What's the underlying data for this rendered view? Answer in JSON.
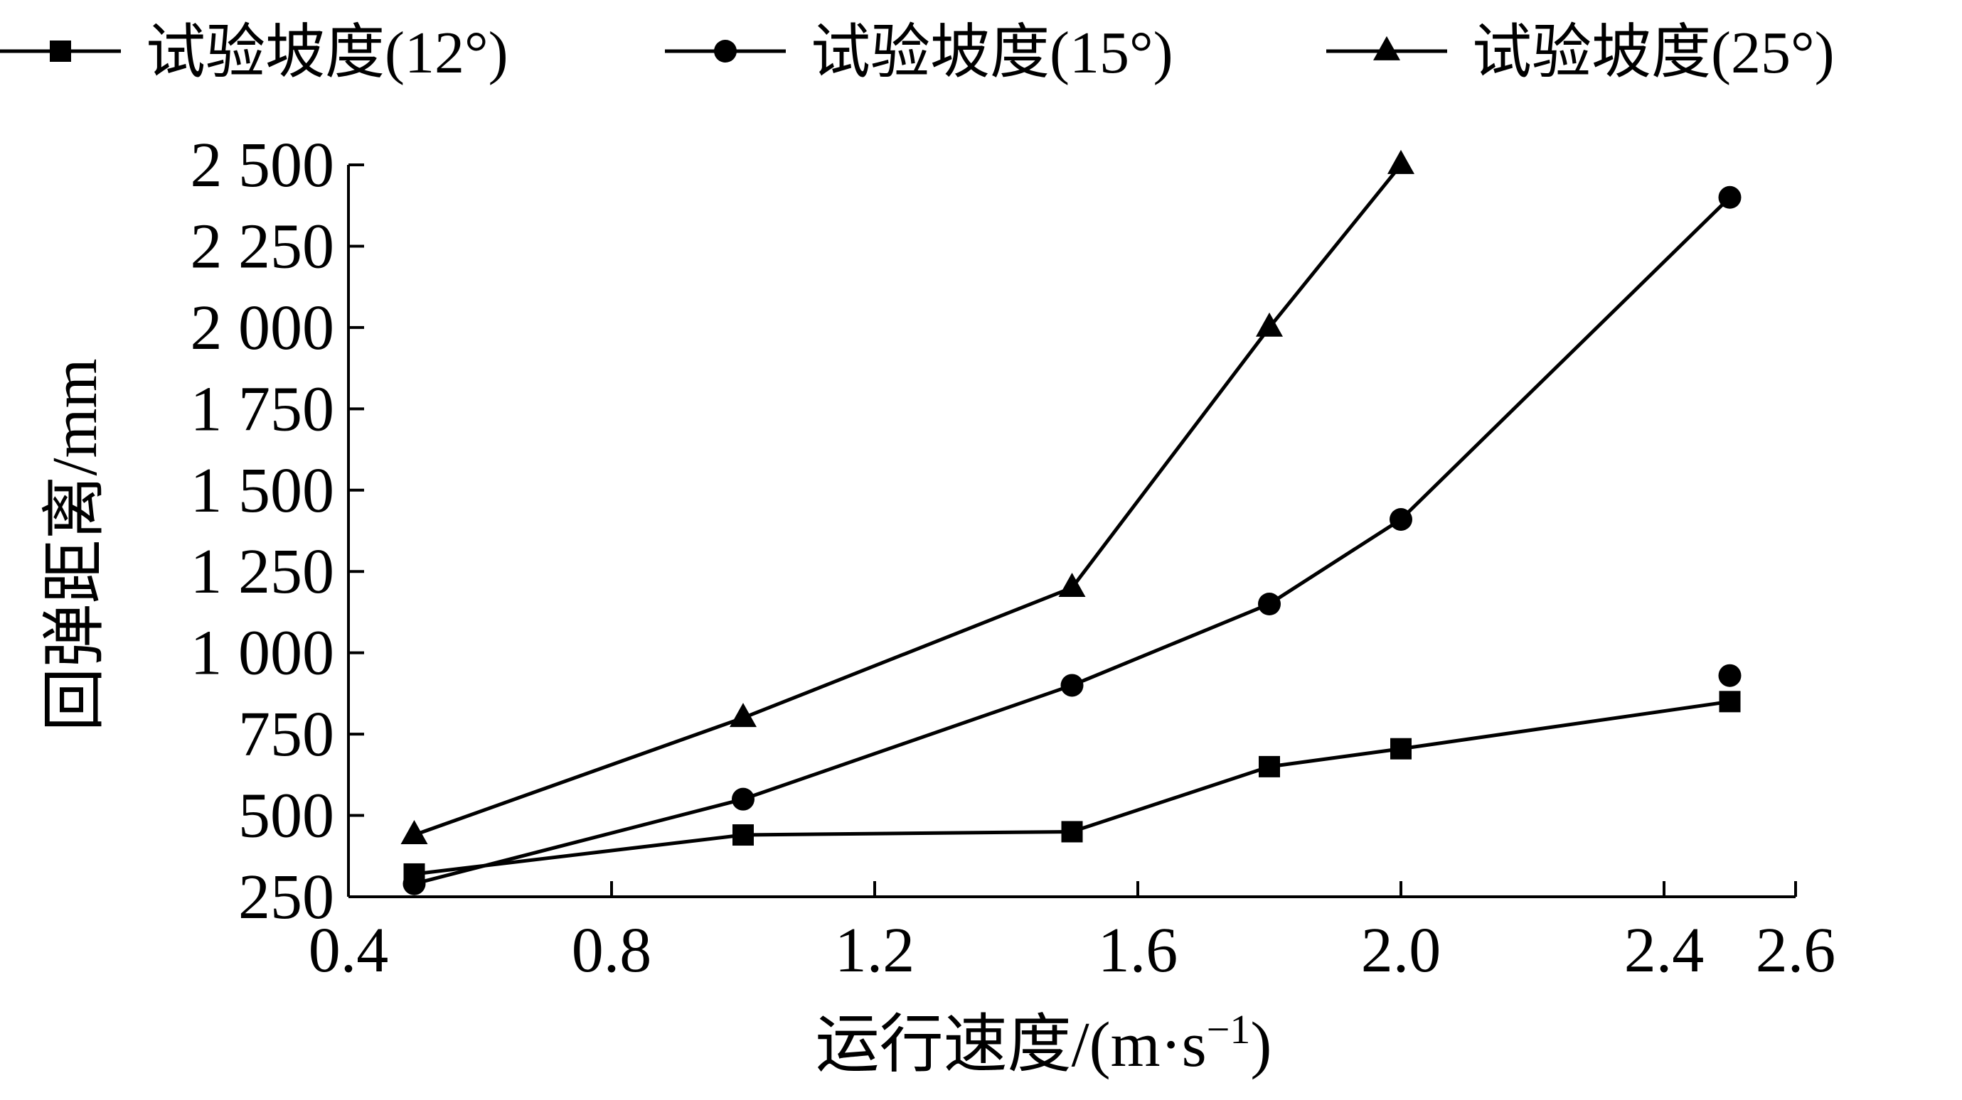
{
  "chart_data": {
    "type": "line",
    "title": "",
    "xlabel_parts": {
      "main": "运行速度/(m·s",
      "sup": "−1",
      "tail": ")"
    },
    "ylabel": "回弹距离/mm",
    "xlim": [
      0.4,
      2.6
    ],
    "ylim": [
      250,
      2500
    ],
    "xticks": [
      {
        "value": 0.4,
        "label": "0.4"
      },
      {
        "value": 0.8,
        "label": "0.8"
      },
      {
        "value": 1.2,
        "label": "1.2"
      },
      {
        "value": 1.6,
        "label": "1.6"
      },
      {
        "value": 2.0,
        "label": "2.0"
      },
      {
        "value": 2.4,
        "label": "2.4"
      },
      {
        "value": 2.6,
        "label": "2.6"
      }
    ],
    "yticks": [
      {
        "value": 250,
        "label": "250"
      },
      {
        "value": 500,
        "label": "500"
      },
      {
        "value": 750,
        "label": "750"
      },
      {
        "value": 1000,
        "label": "1 000"
      },
      {
        "value": 1250,
        "label": "1 250"
      },
      {
        "value": 1500,
        "label": "1 500"
      },
      {
        "value": 1750,
        "label": "1 750"
      },
      {
        "value": 2000,
        "label": "2 000"
      },
      {
        "value": 2250,
        "label": "2 250"
      },
      {
        "value": 2500,
        "label": "2 500"
      }
    ],
    "legend_position": "top",
    "grid": false,
    "line_color": "#000000",
    "series": [
      {
        "name": "试验坡度(12°)",
        "marker": "square",
        "x": [
          0.5,
          1.0,
          1.5,
          1.8,
          2.0,
          2.5
        ],
        "y": [
          320,
          440,
          450,
          650,
          705,
          850
        ]
      },
      {
        "name": "试验坡度(15°)",
        "marker": "circle",
        "x": [
          0.5,
          1.0,
          1.5,
          1.8,
          2.0,
          2.5
        ],
        "y": [
          290,
          550,
          900,
          1150,
          1410,
          2400
        ],
        "extra_points": [
          {
            "x": 2.5,
            "y": 930
          }
        ]
      },
      {
        "name": "试验坡度(25°)",
        "marker": "triangle",
        "x": [
          0.5,
          1.0,
          1.5,
          1.8,
          2.0
        ],
        "y": [
          440,
          800,
          1200,
          2000,
          2500
        ]
      }
    ]
  }
}
